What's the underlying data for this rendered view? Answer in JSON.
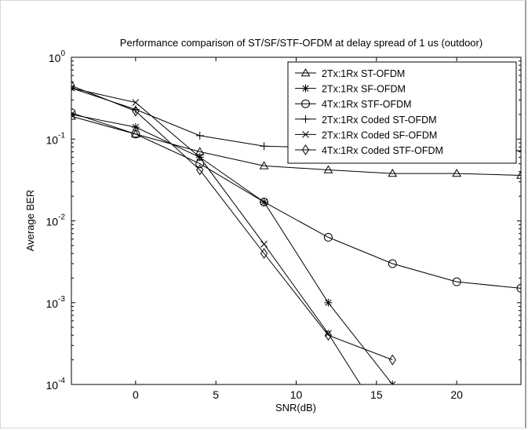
{
  "chart_data": {
    "type": "line",
    "title": "Performance comparison of ST/SF/STF-OFDM at delay spread of 1 us (outdoor)",
    "xlabel": "SNR(dB)",
    "ylabel": "Average BER",
    "xlim": [
      -4,
      24
    ],
    "ylim": [
      0.0001,
      1
    ],
    "yscale": "log",
    "grid": false,
    "legend_position": "top-right",
    "xticks": [
      0,
      5,
      10,
      15,
      20
    ],
    "yticks": [
      {
        "value": 1,
        "mantissa": "10",
        "exp": "0"
      },
      {
        "value": 0.1,
        "mantissa": "10",
        "exp": "-1"
      },
      {
        "value": 0.01,
        "mantissa": "10",
        "exp": "-2"
      },
      {
        "value": 0.001,
        "mantissa": "10",
        "exp": "-3"
      },
      {
        "value": 0.0001,
        "mantissa": "10",
        "exp": "-4"
      }
    ],
    "series": [
      {
        "name": "2Tx:1Rx ST-OFDM",
        "marker": "triangle",
        "x": [
          -4,
          0,
          4,
          8,
          12,
          16,
          20,
          24
        ],
        "y": [
          0.19,
          0.115,
          0.07,
          0.047,
          0.042,
          0.038,
          0.038,
          0.036
        ]
      },
      {
        "name": "2Tx:1Rx SF-OFDM",
        "marker": "star",
        "x": [
          -4,
          0,
          4,
          8,
          12,
          16
        ],
        "y": [
          0.2,
          0.14,
          0.06,
          0.017,
          0.001,
          0.0001
        ]
      },
      {
        "name": "4Tx:1Rx STF-OFDM",
        "marker": "circle",
        "x": [
          -4,
          0,
          4,
          8,
          12,
          16,
          20,
          24
        ],
        "y": [
          0.21,
          0.115,
          0.05,
          0.017,
          0.0063,
          0.003,
          0.0018,
          0.0015
        ]
      },
      {
        "name": "2Tx:1Rx Coded ST-OFDM",
        "marker": "plus",
        "x": [
          -4,
          0,
          4,
          8,
          12,
          16,
          20,
          24
        ],
        "y": [
          0.42,
          0.23,
          0.11,
          0.082,
          0.078,
          0.075,
          0.073,
          0.072
        ]
      },
      {
        "name": "2Tx:1Rx Coded SF-OFDM",
        "marker": "x",
        "x": [
          -4,
          0,
          4,
          8,
          12,
          14
        ],
        "y": [
          0.42,
          0.28,
          0.06,
          0.0052,
          0.00042,
          0.0001
        ]
      },
      {
        "name": "4Tx:1Rx Coded STF-OFDM",
        "marker": "diamond",
        "x": [
          -4,
          0,
          4,
          8,
          12,
          16
        ],
        "y": [
          0.45,
          0.22,
          0.042,
          0.004,
          0.0004,
          0.0002
        ]
      }
    ]
  }
}
